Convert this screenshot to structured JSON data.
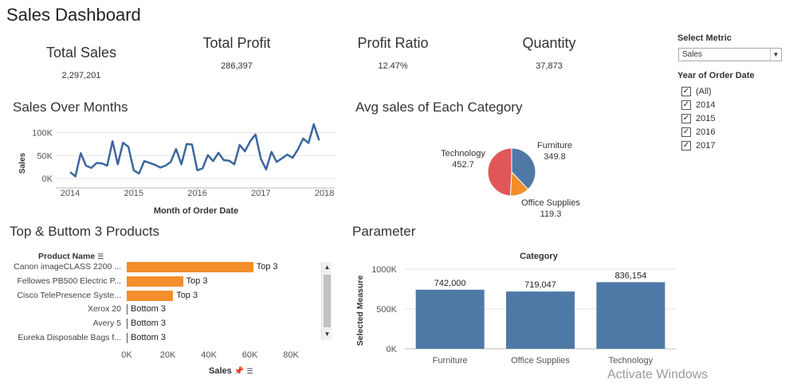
{
  "title": "Sales Dashboard",
  "kpis": [
    {
      "label": "Total Sales",
      "value": "2,297,201"
    },
    {
      "label": "Total Profit",
      "value": "286,397"
    },
    {
      "label": "Profit Ratio",
      "value": "12.47%"
    },
    {
      "label": "Quantity",
      "value": "37,873"
    }
  ],
  "controls": {
    "metric_label": "Select Metric",
    "metric_selected": "Sales",
    "year_label": "Year of Order Date",
    "years": [
      {
        "label": "(All)",
        "checked": true
      },
      {
        "label": "2014",
        "checked": true
      },
      {
        "label": "2015",
        "checked": true
      },
      {
        "label": "2016",
        "checked": true
      },
      {
        "label": "2017",
        "checked": true
      }
    ]
  },
  "sections": {
    "sales_over_months": "Sales Over Months",
    "avg_sales_category": "Avg sales of Each Category",
    "top_bottom": "Top & Buttom 3 Products",
    "parameter": "Parameter"
  },
  "watermark": "Activate Windows",
  "colors": {
    "line": "#3b679e",
    "bar_blue": "#4e79a7",
    "bar_orange": "#f28e2b",
    "pie_red": "#e15759",
    "pie_blue": "#4e79a7",
    "pie_orange": "#f28e2b"
  },
  "chart_data": [
    {
      "type": "line",
      "title": "Sales Over Months",
      "xlabel": "Month of Order Date",
      "ylabel": "Sales",
      "x_ticks": [
        "2014",
        "2015",
        "2016",
        "2017",
        "2018"
      ],
      "y_ticks": [
        "0K",
        "50K",
        "100K"
      ],
      "ylim": [
        -10000,
        125000
      ],
      "x": [
        2014.0,
        2014.083,
        2014.167,
        2014.25,
        2014.333,
        2014.417,
        2014.5,
        2014.583,
        2014.667,
        2014.75,
        2014.833,
        2014.917,
        2015.0,
        2015.083,
        2015.167,
        2015.25,
        2015.333,
        2015.417,
        2015.5,
        2015.583,
        2015.667,
        2015.75,
        2015.833,
        2015.917,
        2016.0,
        2016.083,
        2016.167,
        2016.25,
        2016.333,
        2016.417,
        2016.5,
        2016.583,
        2016.667,
        2016.75,
        2016.833,
        2016.917,
        2017.0,
        2017.083,
        2017.167,
        2017.25,
        2017.333,
        2017.417,
        2017.5,
        2017.583,
        2017.667,
        2017.75,
        2017.833,
        2017.917
      ],
      "values": [
        14000,
        4500,
        55000,
        28000,
        23000,
        34000,
        33000,
        28000,
        81000,
        31000,
        78000,
        69000,
        18000,
        11000,
        38000,
        34000,
        30000,
        24000,
        28000,
        36000,
        64000,
        31000,
        75000,
        74000,
        18000,
        22000,
        51000,
        38000,
        56000,
        40000,
        39000,
        31000,
        73000,
        59000,
        81000,
        96000,
        43000,
        20000,
        58000,
        36000,
        44000,
        52000,
        45000,
        63000,
        87000,
        77000,
        118000,
        83000
      ]
    },
    {
      "type": "pie",
      "title": "Avg sales of Each Category",
      "labels": [
        "Technology",
        "Furniture",
        "Office Supplies"
      ],
      "values": [
        452.7,
        349.8,
        119.3
      ],
      "value_labels": [
        "452.7",
        "349.8",
        "119.3"
      ]
    },
    {
      "type": "bar",
      "orientation": "horizontal",
      "title": "Top & Buttom 3 Products",
      "y_header": "Product Name",
      "xlabel": "Sales",
      "x_ticks": [
        "0K",
        "20K",
        "40K",
        "60K",
        "80K"
      ],
      "xlim": [
        0,
        100000
      ],
      "categories": [
        "Canon imageCLASS 2200 ...",
        "Fellowes PB500 Electric P...",
        "Cisco TelePresence Syste...",
        "Xerox 20",
        "Avery 5",
        "Eureka Disposable Bags f..."
      ],
      "values": [
        61600,
        27400,
        22600,
        6.5,
        5.8,
        1.6
      ],
      "tags": [
        "Top 3",
        "Top 3",
        "Top 3",
        "Bottom 3",
        "Bottom 3",
        "Bottom 3"
      ]
    },
    {
      "type": "bar",
      "title": "Category",
      "ylabel": "Selected Measure",
      "y_ticks": [
        "0K",
        "500K",
        "1000K"
      ],
      "ylim": [
        0,
        1000000
      ],
      "categories": [
        "Furniture",
        "Office Supplies",
        "Technology"
      ],
      "values": [
        742000,
        719047,
        836154
      ],
      "value_labels": [
        "742,000",
        "719,047",
        "836,154"
      ]
    }
  ]
}
